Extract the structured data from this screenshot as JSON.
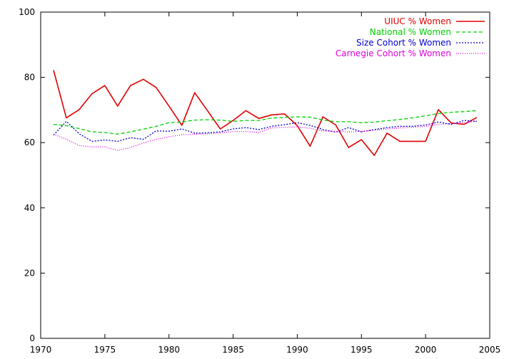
{
  "chart_data": {
    "type": "line",
    "title": "",
    "xlabel": "",
    "ylabel": "",
    "xlim": [
      1970,
      2005
    ],
    "ylim": [
      0,
      100
    ],
    "xticks": [
      1970,
      1975,
      1980,
      1985,
      1990,
      1995,
      2000,
      2005
    ],
    "yticks": [
      0,
      20,
      40,
      60,
      80,
      100
    ],
    "grid": false,
    "legend_position": "top-right",
    "x": [
      1971,
      1972,
      1973,
      1974,
      1975,
      1976,
      1977,
      1978,
      1979,
      1980,
      1981,
      1982,
      1983,
      1984,
      1985,
      1986,
      1987,
      1988,
      1989,
      1990,
      1991,
      1992,
      1993,
      1994,
      1995,
      1996,
      1997,
      1998,
      1999,
      2000,
      2001,
      2002,
      2003,
      2004
    ],
    "series": [
      {
        "name": "UIUC % Women",
        "color": "#e00000",
        "dash": "solid",
        "values": [
          82.2,
          67.6,
          70.1,
          75.0,
          77.5,
          71.2,
          77.5,
          79.4,
          76.9,
          71.2,
          65.3,
          75.3,
          69.8,
          64.2,
          66.8,
          69.8,
          67.4,
          68.5,
          68.8,
          65.2,
          58.9,
          67.9,
          65.4,
          58.5,
          60.9,
          56.1,
          62.9,
          60.4,
          60.4,
          60.4,
          70.1,
          66.0,
          65.6,
          67.7
        ]
      },
      {
        "name": "National % Women",
        "color": "#00d000",
        "dash": "dashed",
        "values": [
          65.6,
          65.2,
          64.3,
          63.3,
          63.1,
          62.6,
          63.3,
          64.1,
          65.0,
          66.1,
          66.3,
          66.9,
          67.0,
          66.9,
          66.5,
          66.8,
          66.8,
          67.5,
          67.7,
          67.9,
          67.8,
          66.9,
          66.4,
          66.4,
          66.1,
          66.3,
          66.7,
          67.1,
          67.6,
          68.2,
          68.9,
          69.3,
          69.5,
          69.8
        ]
      },
      {
        "name": "Size Cohort % Women",
        "color": "#0000d0",
        "dash": "dotted-dense",
        "values": [
          62.3,
          66.5,
          62.7,
          60.4,
          60.8,
          60.4,
          61.5,
          61.0,
          63.6,
          63.5,
          64.2,
          62.9,
          63.0,
          63.3,
          64.2,
          64.6,
          64.0,
          65.0,
          65.5,
          66.1,
          65.3,
          64.0,
          63.2,
          64.6,
          63.3,
          64.0,
          64.6,
          65.0,
          65.0,
          65.4,
          66.3,
          65.6,
          66.8,
          66.5
        ]
      },
      {
        "name": "Carnegie Cohort % Women",
        "color": "#e000e0",
        "dash": "dotted",
        "values": [
          62.6,
          61.0,
          59.1,
          58.7,
          58.7,
          57.6,
          58.5,
          59.9,
          61.0,
          61.8,
          62.4,
          62.6,
          62.7,
          63.0,
          63.4,
          63.4,
          63.1,
          64.5,
          64.7,
          64.8,
          64.4,
          63.6,
          63.4,
          63.3,
          63.4,
          63.8,
          64.2,
          64.5,
          64.7,
          65.0,
          65.6,
          65.8,
          66.1,
          66.6
        ]
      }
    ]
  }
}
